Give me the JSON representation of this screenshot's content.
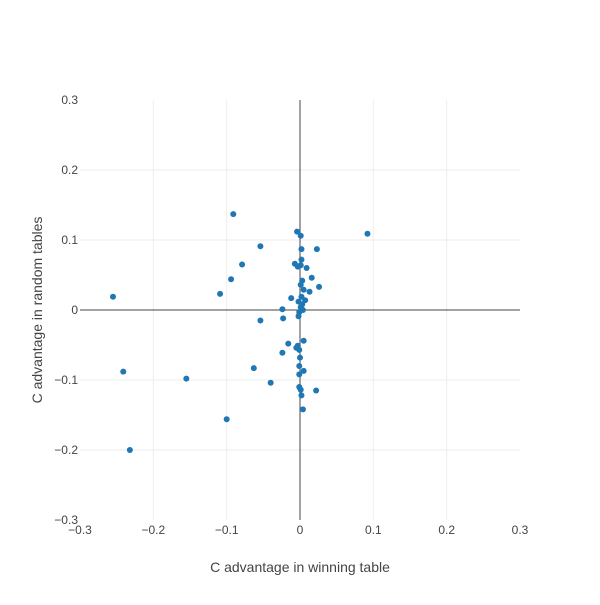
{
  "chart_data": {
    "type": "scatter",
    "title": "",
    "xlabel": "C advantage in winning table",
    "ylabel": "C advantage in random tables",
    "xlim": [
      -0.3,
      0.3
    ],
    "ylim": [
      -0.3,
      0.3
    ],
    "xticks": [
      -0.3,
      -0.2,
      -0.1,
      0,
      0.1,
      0.2,
      0.3
    ],
    "yticks": [
      -0.3,
      -0.2,
      -0.1,
      0,
      0.1,
      0.2,
      0.3
    ],
    "xtick_labels": [
      "−0.3",
      "−0.2",
      "−0.1",
      "0",
      "0.1",
      "0.2",
      "0.3"
    ],
    "ytick_labels": [
      "−0.3",
      "−0.2",
      "−0.1",
      "0",
      "0.1",
      "0.2",
      "0.3"
    ],
    "grid": true,
    "zero_lines": true,
    "marker_color": "#1f77b4",
    "grid_color": "#eeeeee",
    "zeroline_color": "#444444",
    "series": [
      {
        "points": [
          [
            -0.091,
            0.137
          ],
          [
            -0.054,
            0.091
          ],
          [
            -0.004,
            0.112
          ],
          [
            0.001,
            0.106
          ],
          [
            0.092,
            0.109
          ],
          [
            0.002,
            0.087
          ],
          [
            0.023,
            0.087
          ],
          [
            -0.079,
            0.065
          ],
          [
            -0.007,
            0.066
          ],
          [
            -0.003,
            0.062
          ],
          [
            0.002,
            0.072
          ],
          [
            0.001,
            0.064
          ],
          [
            0.009,
            0.06
          ],
          [
            0.016,
            0.046
          ],
          [
            -0.094,
            0.044
          ],
          [
            0.003,
            0.042
          ],
          [
            0.001,
            0.036
          ],
          [
            0.026,
            0.033
          ],
          [
            0.005,
            0.029
          ],
          [
            0.013,
            0.026
          ],
          [
            -0.109,
            0.023
          ],
          [
            -0.255,
            0.019
          ],
          [
            -0.012,
            0.017
          ],
          [
            0.002,
            0.019
          ],
          [
            0.007,
            0.014
          ],
          [
            -0.002,
            0.012
          ],
          [
            0.003,
            0.008
          ],
          [
            0.001,
            0.004
          ],
          [
            -0.024,
            0.001
          ],
          [
            0.004,
            0.0
          ],
          [
            -0.001,
            -0.003
          ],
          [
            -0.002,
            -0.009
          ],
          [
            -0.023,
            -0.012
          ],
          [
            -0.054,
            -0.015
          ],
          [
            0.005,
            -0.044
          ],
          [
            -0.016,
            -0.048
          ],
          [
            -0.003,
            -0.051
          ],
          [
            -0.005,
            -0.054
          ],
          [
            -0.001,
            -0.057
          ],
          [
            -0.024,
            -0.061
          ],
          [
            0.0,
            -0.068
          ],
          [
            -0.001,
            -0.08
          ],
          [
            -0.063,
            -0.083
          ],
          [
            0.005,
            -0.087
          ],
          [
            -0.241,
            -0.088
          ],
          [
            -0.001,
            -0.092
          ],
          [
            -0.155,
            -0.098
          ],
          [
            -0.04,
            -0.104
          ],
          [
            -0.001,
            -0.11
          ],
          [
            0.001,
            -0.114
          ],
          [
            0.022,
            -0.115
          ],
          [
            0.002,
            -0.122
          ],
          [
            0.004,
            -0.142
          ],
          [
            -0.1,
            -0.156
          ],
          [
            -0.232,
            -0.2
          ]
        ]
      }
    ]
  }
}
